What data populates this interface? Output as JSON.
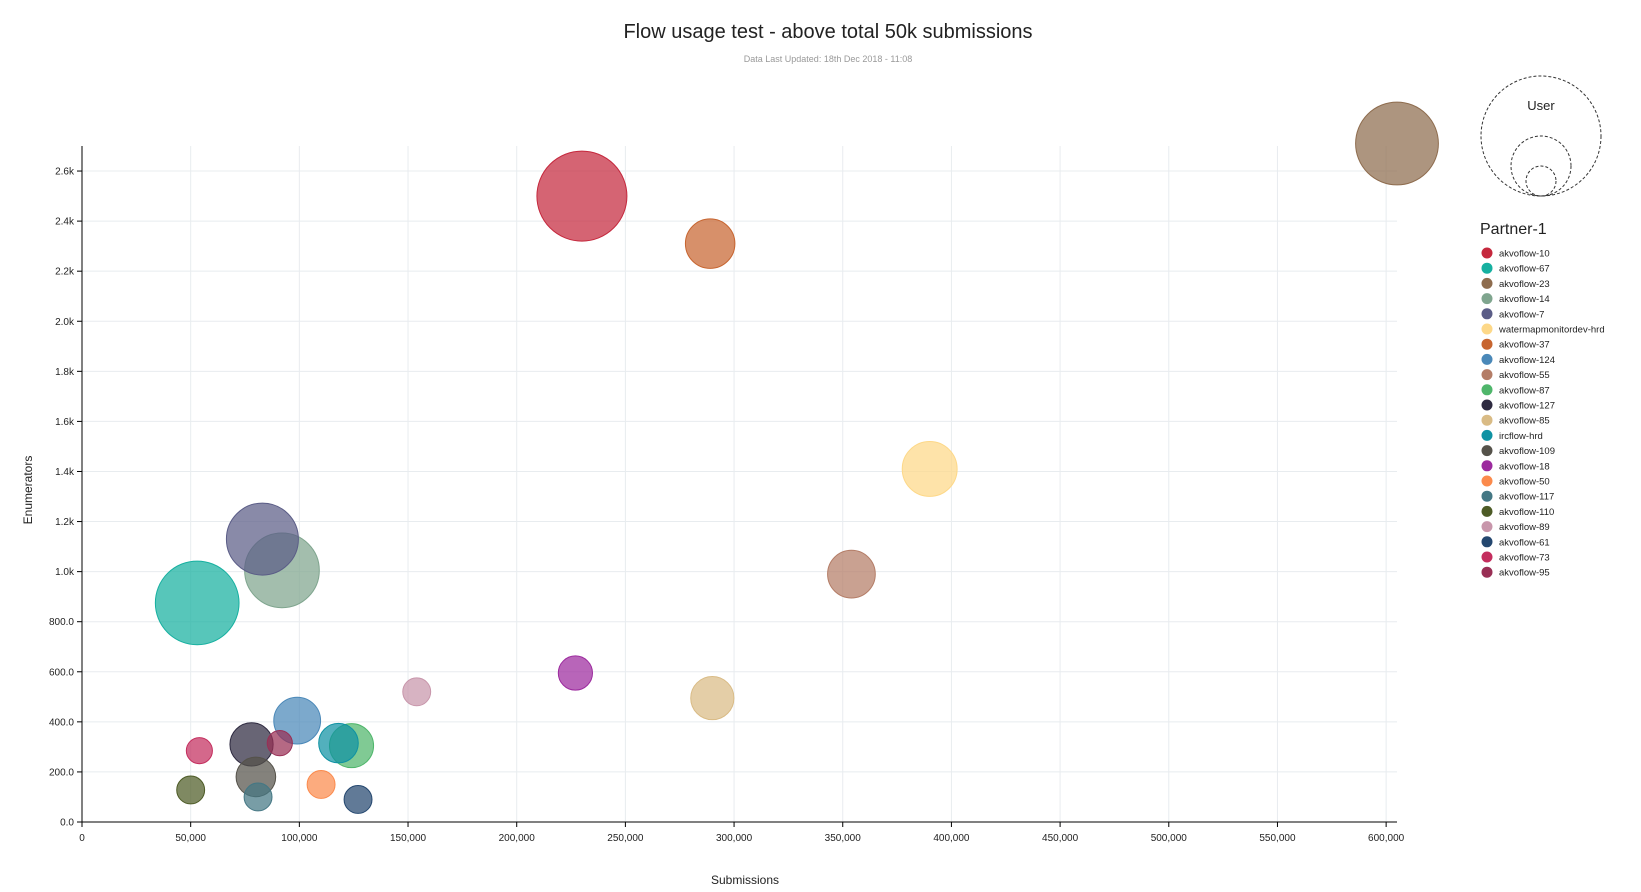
{
  "chart_data": {
    "type": "scatter",
    "title": "Flow usage test - above total 50k submissions",
    "subtitle": "Data Last Updated: 18th Dec 2018 - 11:08",
    "xlabel": "Submissions",
    "ylabel": "Enumerators",
    "xlim": [
      0,
      605000
    ],
    "ylim": [
      0,
      2700
    ],
    "x_ticks": [
      {
        "value": 0,
        "label": "0"
      },
      {
        "value": 50000,
        "label": "50,000"
      },
      {
        "value": 100000,
        "label": "100,000"
      },
      {
        "value": 150000,
        "label": "150,000"
      },
      {
        "value": 200000,
        "label": "200,000"
      },
      {
        "value": 250000,
        "label": "250,000"
      },
      {
        "value": 300000,
        "label": "300,000"
      },
      {
        "value": 350000,
        "label": "350,000"
      },
      {
        "value": 400000,
        "label": "400,000"
      },
      {
        "value": 450000,
        "label": "450,000"
      },
      {
        "value": 500000,
        "label": "500,000"
      },
      {
        "value": 550000,
        "label": "550,000"
      },
      {
        "value": 600000,
        "label": "600,000"
      }
    ],
    "y_ticks": [
      {
        "value": 0,
        "label": "0.0"
      },
      {
        "value": 200,
        "label": "200.0"
      },
      {
        "value": 400,
        "label": "400.0"
      },
      {
        "value": 600,
        "label": "600.0"
      },
      {
        "value": 800,
        "label": "800.0"
      },
      {
        "value": 1000,
        "label": "1.0k"
      },
      {
        "value": 1200,
        "label": "1.2k"
      },
      {
        "value": 1400,
        "label": "1.4k"
      },
      {
        "value": 1600,
        "label": "1.6k"
      },
      {
        "value": 1800,
        "label": "1.8k"
      },
      {
        "value": 2000,
        "label": "2.0k"
      },
      {
        "value": 2200,
        "label": "2.2k"
      },
      {
        "value": 2400,
        "label": "2.4k"
      },
      {
        "value": 2600,
        "label": "2.6k"
      }
    ],
    "grid": true,
    "legend_title": "Partner-1",
    "legend_placement": "right",
    "size_legend_title": "User",
    "series": [
      {
        "name": "akvoflow-10",
        "color": "#c5283d",
        "x": 230000,
        "y": 2500,
        "size": 1.0
      },
      {
        "name": "akvoflow-67",
        "color": "#16b0a0",
        "x": 53000,
        "y": 875,
        "size": 0.93
      },
      {
        "name": "akvoflow-23",
        "color": "#8e6c4e",
        "x": 605000,
        "y": 2710,
        "size": 0.92
      },
      {
        "name": "akvoflow-14",
        "color": "#7fa58e",
        "x": 92000,
        "y": 1005,
        "size": 0.83
      },
      {
        "name": "akvoflow-7",
        "color": "#5b5d87",
        "x": 83000,
        "y": 1130,
        "size": 0.8
      },
      {
        "name": "watermapmonitordev-hrd",
        "color": "#fdd888",
        "x": 390000,
        "y": 1410,
        "size": 0.61
      },
      {
        "name": "akvoflow-37",
        "color": "#c76530",
        "x": 289000,
        "y": 2310,
        "size": 0.55
      },
      {
        "name": "akvoflow-124",
        "color": "#4a88b8",
        "x": 99000,
        "y": 405,
        "size": 0.52
      },
      {
        "name": "akvoflow-55",
        "color": "#b47d67",
        "x": 354000,
        "y": 990,
        "size": 0.53
      },
      {
        "name": "akvoflow-87",
        "color": "#4fb66b",
        "x": 124000,
        "y": 305,
        "size": 0.49
      },
      {
        "name": "akvoflow-127",
        "color": "#2e2a40",
        "x": 78000,
        "y": 310,
        "size": 0.48
      },
      {
        "name": "akvoflow-85",
        "color": "#d9bb85",
        "x": 290000,
        "y": 495,
        "size": 0.48
      },
      {
        "name": "ircflow-hrd",
        "color": "#0f92a3",
        "x": 118000,
        "y": 315,
        "size": 0.44
      },
      {
        "name": "akvoflow-109",
        "color": "#55524a",
        "x": 80000,
        "y": 180,
        "size": 0.44
      },
      {
        "name": "akvoflow-18",
        "color": "#9c2a9e",
        "x": 227000,
        "y": 595,
        "size": 0.38
      },
      {
        "name": "akvoflow-50",
        "color": "#fb8a4c",
        "x": 110000,
        "y": 150,
        "size": 0.31
      },
      {
        "name": "akvoflow-117",
        "color": "#447784",
        "x": 81000,
        "y": 100,
        "size": 0.31
      },
      {
        "name": "akvoflow-110",
        "color": "#4d5b26",
        "x": 50000,
        "y": 128,
        "size": 0.31
      },
      {
        "name": "akvoflow-89",
        "color": "#c896ab",
        "x": 154000,
        "y": 520,
        "size": 0.31
      },
      {
        "name": "akvoflow-61",
        "color": "#24476f",
        "x": 127000,
        "y": 90,
        "size": 0.31
      },
      {
        "name": "akvoflow-73",
        "color": "#c42e5e",
        "x": 54000,
        "y": 285,
        "size": 0.29
      },
      {
        "name": "akvoflow-95",
        "color": "#992f55",
        "x": 91000,
        "y": 315,
        "size": 0.28
      }
    ]
  }
}
